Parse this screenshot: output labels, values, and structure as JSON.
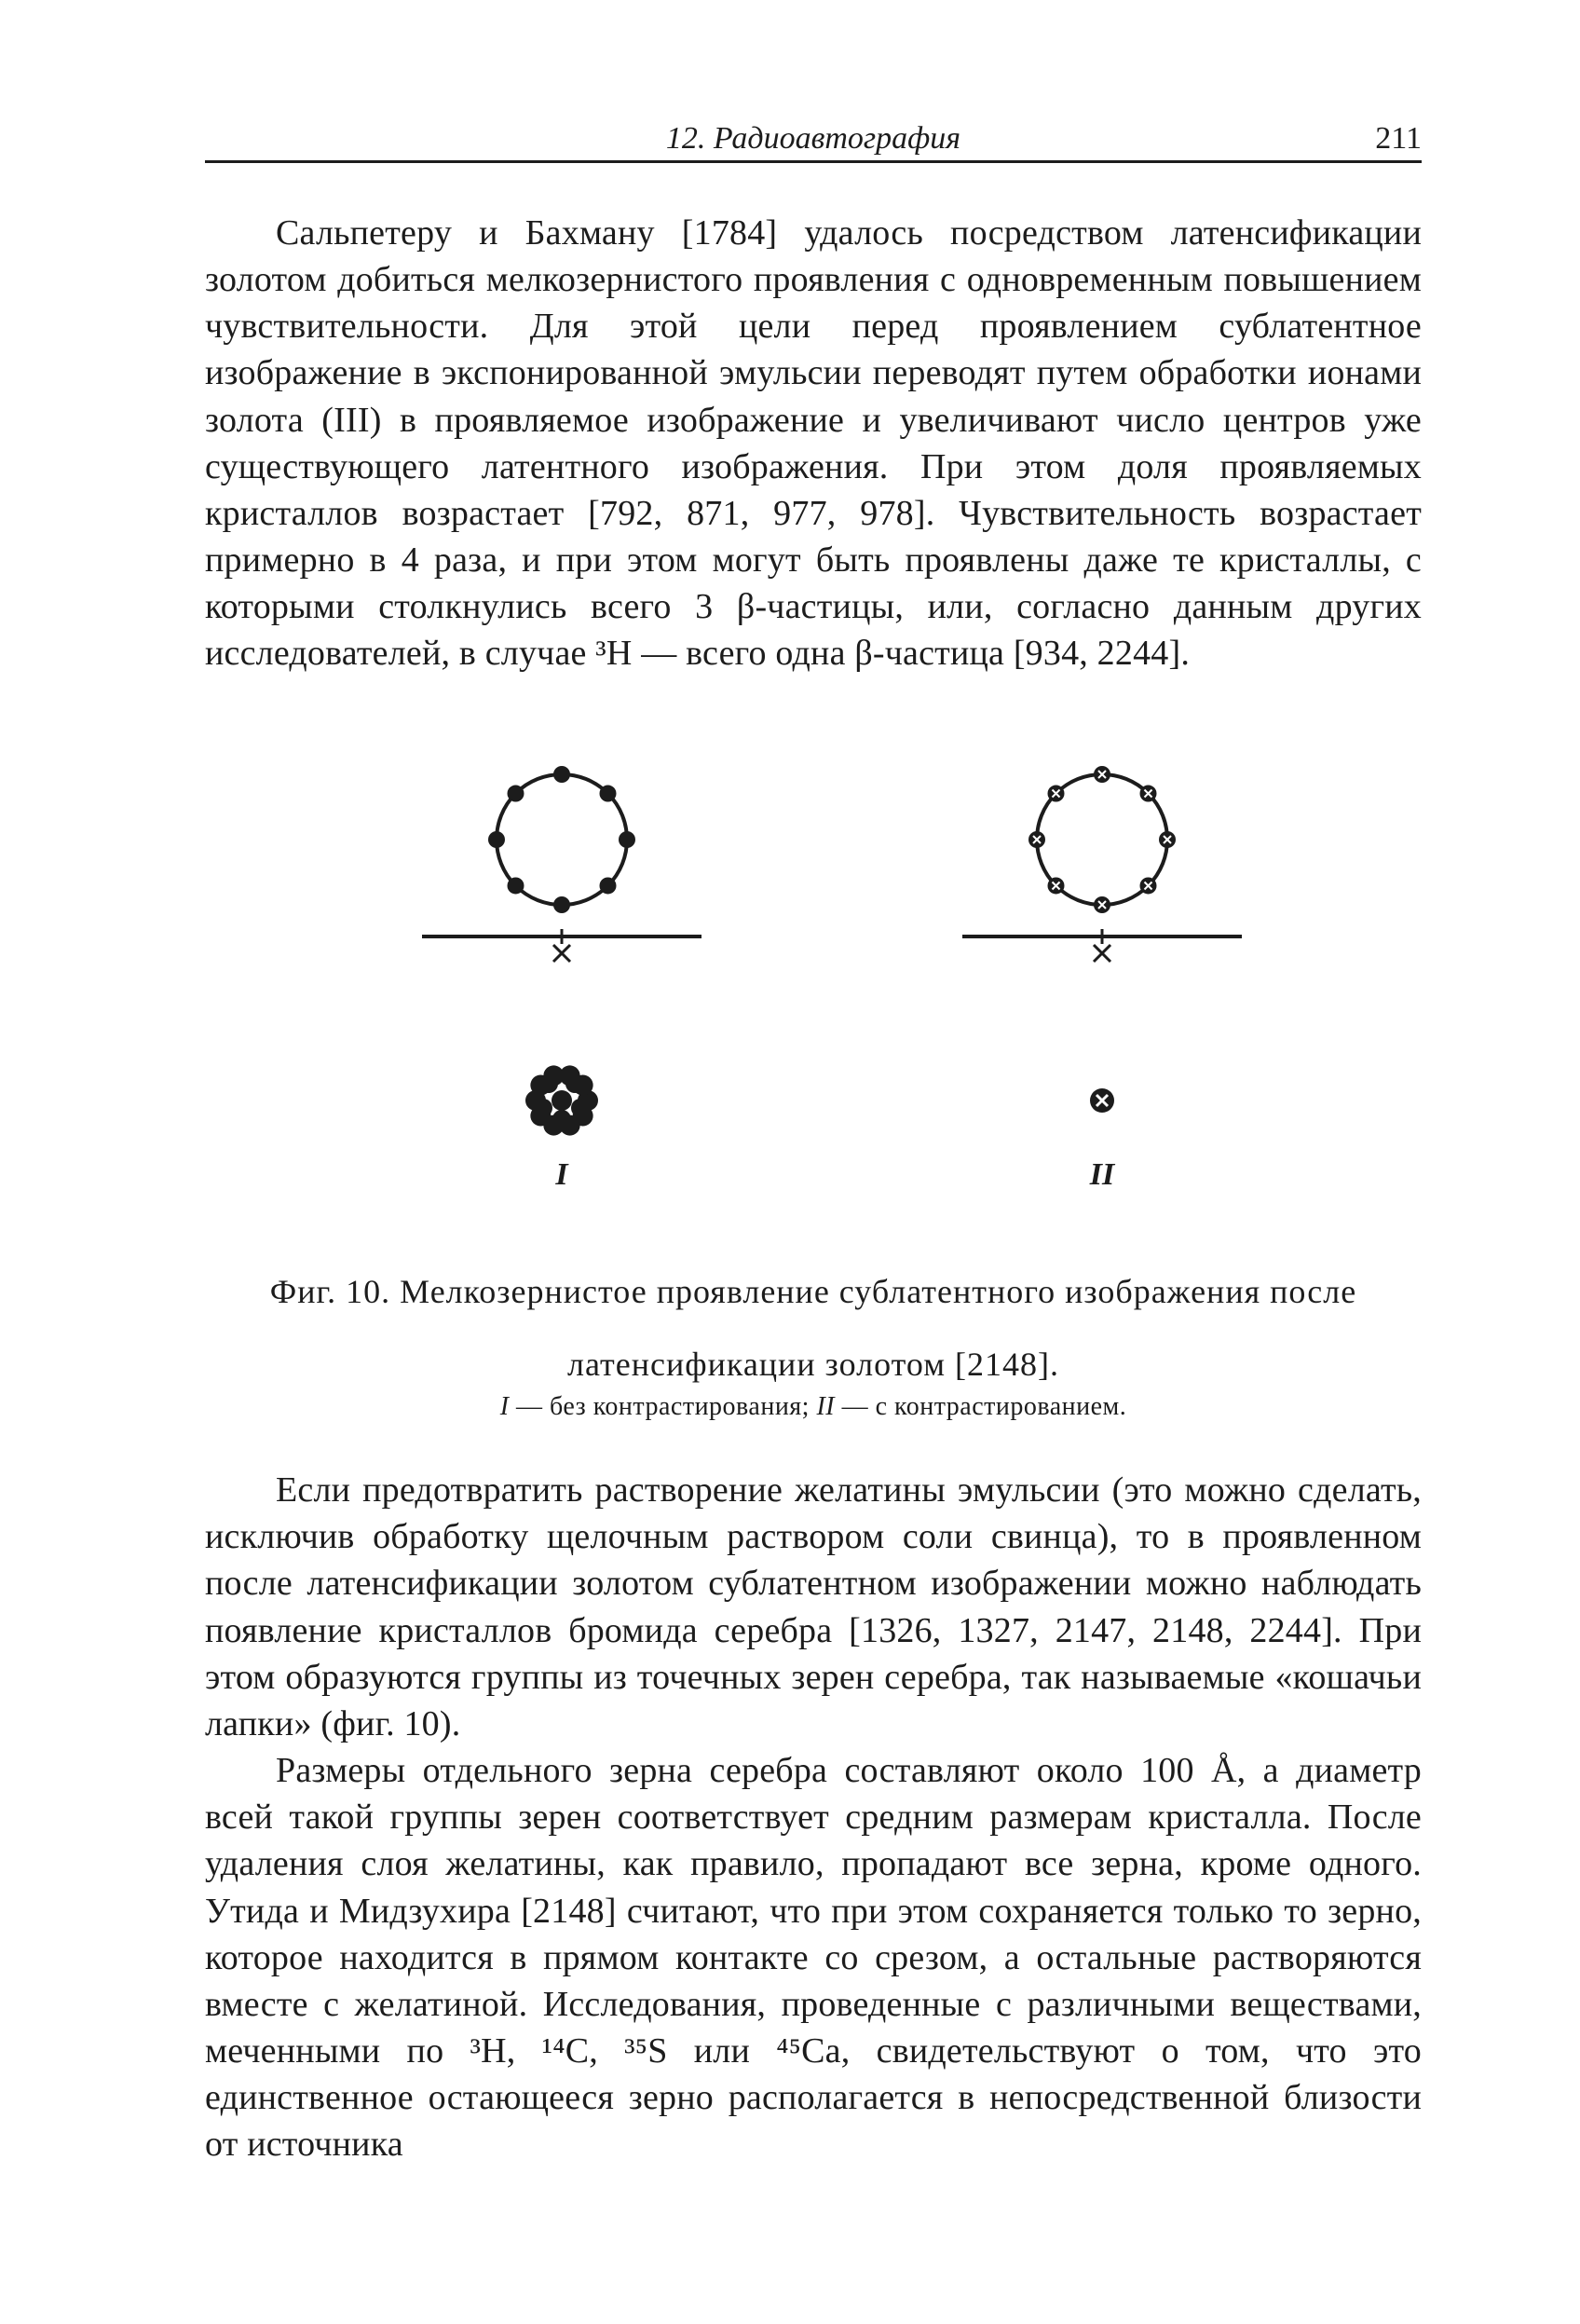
{
  "header": {
    "chapter": "12. Радиоавтография",
    "page": "211"
  },
  "paragraphs": {
    "p1": "Сальпетеру и Бахману [1784] удалось посредством латенсификации золотом добиться мелкозернистого проявления с одновременным повышением чувствительности. Для этой цели перед проявлением сублатентное изображение в экспонированной эмульсии переводят путем обработки ионами золота (III) в проявляемое изображение и увеличивают число центров уже существующего латентного изображения. При этом доля проявляемых кристаллов возрастает [792, 871, 977, 978]. Чувствительность возрастает примерно в 4 раза, и при этом могут быть проявлены даже те кристаллы, с которыми столкнулись всего 3 β-частицы, или, согласно данным других исследователей, в случае ³H — всего одна β-частица [934, 2244].",
    "p2": "Если предотвратить растворение желатины эмульсии (это можно сделать, исключив обработку щелочным раствором соли свинца), то в проявленном после латенсификации золотом сублатентном изображении можно наблюдать появление кристаллов бромида серебра [1326, 1327, 2147, 2148, 2244]. При этом образуются группы из точечных зерен серебра, так называемые «кошачьи лапки» (фиг. 10).",
    "p3": "Размеры отдельного зерна серебра составляют около 100 Å, а диаметр всей такой группы зерен соответствует средним размерам кристалла. После удаления слоя желатины, как правило, пропадают все зерна, кроме одного. Утида и Мидзухира [2148] считают, что при этом сохраняется только то зерно, которое находится в прямом контакте со срезом, а остальные растворяются вместе с желатиной. Исследования, проведенные с различными веществами, меченными по ³H, ¹⁴C, ³⁵S или ⁴⁵Ca, свидетельствуют о том, что это единственное остающееся зерно располагается в непосредственной близости от источника"
  },
  "figure": {
    "label_left": "I",
    "label_right": "II",
    "caption_main_l1": "Фиг. 10. Мелкозернистое проявление сублатентного изображения после",
    "caption_main_l2": "латенсификации золотом [2148].",
    "caption_sub": "I — без контрастирования; II — с контрастированием.",
    "stroke": "#1c1c1c",
    "circle_r": 70,
    "dot_r": 9,
    "big_dot_r": 11,
    "baseline_w": 300,
    "row_gap": 70,
    "col_gap": 580,
    "bg": "#ffffff",
    "font": "Georgia, 'Times New Roman', serif",
    "label_font_size": 34
  }
}
